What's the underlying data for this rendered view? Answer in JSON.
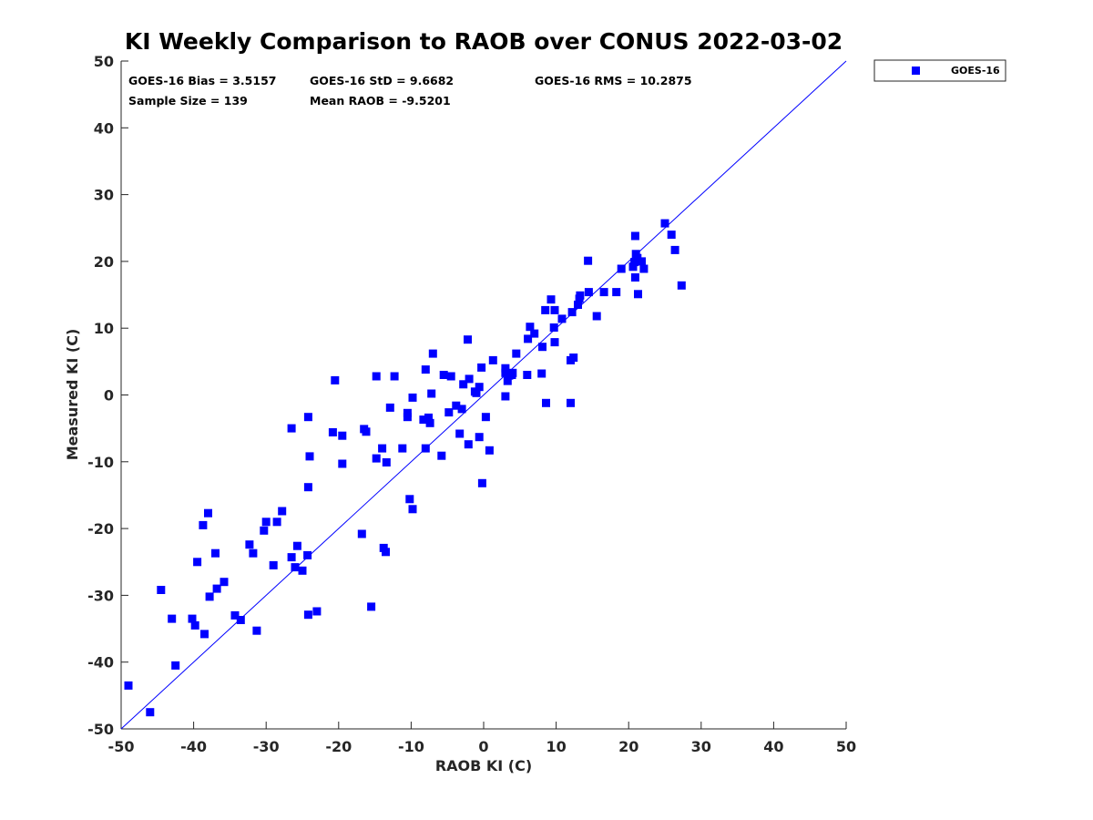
{
  "chart_data": {
    "type": "scatter",
    "title": "KI Weekly Comparison to RAOB over CONUS 2022-03-02",
    "xlabel": "RAOB KI (C)",
    "ylabel": "Measured KI (C)",
    "xlim": [
      -50,
      50
    ],
    "ylim": [
      -50,
      50
    ],
    "xticks": [
      "-50",
      "-40",
      "-30",
      "-20",
      "-10",
      "0",
      "10",
      "20",
      "30",
      "40",
      "50"
    ],
    "yticks": [
      "50",
      "40",
      "30",
      "20",
      "10",
      "0",
      "-10",
      "-20",
      "-30",
      "-40",
      "-50"
    ],
    "reference_line": {
      "from": [
        -50,
        -50
      ],
      "to": [
        50,
        50
      ],
      "color": "#0000ff"
    },
    "legend": {
      "position": "top-right-outside",
      "entries": [
        "GOES-16"
      ]
    },
    "stats": {
      "bias": "GOES-16 Bias = 3.5157",
      "std": "GOES-16 StD = 9.6682",
      "rms": "GOES-16 RMS = 10.2875",
      "sample_size": "Sample Size = 139",
      "mean_raob": "Mean RAOB = -9.5201"
    },
    "series": [
      {
        "name": "GOES-16",
        "color": "#0000ff",
        "marker": "square",
        "points": [
          [
            -49.0,
            -43.5
          ],
          [
            -46.0,
            -47.5
          ],
          [
            -44.5,
            -29.2
          ],
          [
            -43.0,
            -33.5
          ],
          [
            -42.5,
            -40.5
          ],
          [
            -40.2,
            -33.5
          ],
          [
            -39.8,
            -34.5
          ],
          [
            -39.5,
            -25.0
          ],
          [
            -38.7,
            -19.5
          ],
          [
            -38.5,
            -35.8
          ],
          [
            -38.0,
            -17.7
          ],
          [
            -37.8,
            -30.2
          ],
          [
            -37.0,
            -23.7
          ],
          [
            -36.8,
            -29.0
          ],
          [
            -35.8,
            -28.0
          ],
          [
            -34.3,
            -33.0
          ],
          [
            -33.5,
            -33.7
          ],
          [
            -32.3,
            -22.4
          ],
          [
            -31.8,
            -23.7
          ],
          [
            -31.3,
            -35.3
          ],
          [
            -30.3,
            -20.3
          ],
          [
            -30.0,
            -19.0
          ],
          [
            -29.0,
            -25.5
          ],
          [
            -28.5,
            -19.0
          ],
          [
            -27.8,
            -17.4
          ],
          [
            -26.5,
            -24.3
          ],
          [
            -26.5,
            -5.0
          ],
          [
            -26.0,
            -25.8
          ],
          [
            -25.7,
            -22.6
          ],
          [
            -25.0,
            -26.3
          ],
          [
            -24.3,
            -24.0
          ],
          [
            -24.2,
            -32.9
          ],
          [
            -24.2,
            -13.8
          ],
          [
            -24.0,
            -9.2
          ],
          [
            -24.2,
            -3.3
          ],
          [
            -23.0,
            -32.4
          ],
          [
            -20.8,
            -5.6
          ],
          [
            -20.5,
            2.2
          ],
          [
            -19.5,
            -6.1
          ],
          [
            -19.5,
            -10.3
          ],
          [
            -16.8,
            -20.8
          ],
          [
            -16.5,
            -5.1
          ],
          [
            -16.2,
            -5.5
          ],
          [
            -15.5,
            -31.7
          ],
          [
            -14.8,
            -9.5
          ],
          [
            -14.8,
            2.8
          ],
          [
            -14.0,
            -8.0
          ],
          [
            -13.8,
            -22.9
          ],
          [
            -13.5,
            -23.5
          ],
          [
            -13.4,
            -10.1
          ],
          [
            -12.9,
            -1.9
          ],
          [
            -12.3,
            2.8
          ],
          [
            -11.2,
            -8.0
          ],
          [
            -10.5,
            -3.3
          ],
          [
            -10.5,
            -2.7
          ],
          [
            -10.2,
            -15.6
          ],
          [
            -9.8,
            -17.1
          ],
          [
            -9.8,
            -0.4
          ],
          [
            -8.3,
            -3.7
          ],
          [
            -8.0,
            3.8
          ],
          [
            -8.0,
            -8.0
          ],
          [
            -7.6,
            -3.4
          ],
          [
            -7.4,
            -4.2
          ],
          [
            -7.2,
            0.2
          ],
          [
            -7.0,
            6.2
          ],
          [
            -5.8,
            -9.1
          ],
          [
            -5.5,
            3.0
          ],
          [
            -4.8,
            -2.6
          ],
          [
            -4.5,
            2.8
          ],
          [
            -3.8,
            -1.6
          ],
          [
            -3.3,
            -5.8
          ],
          [
            -3.0,
            -2.1
          ],
          [
            -2.8,
            1.6
          ],
          [
            -2.2,
            8.3
          ],
          [
            -2.1,
            -7.4
          ],
          [
            -2.0,
            2.4
          ],
          [
            -1.2,
            0.5
          ],
          [
            -1.0,
            0.3
          ],
          [
            -0.6,
            1.2
          ],
          [
            -0.6,
            -6.3
          ],
          [
            -0.3,
            4.1
          ],
          [
            -0.2,
            -13.2
          ],
          [
            0.3,
            -3.3
          ],
          [
            0.8,
            -8.3
          ],
          [
            1.3,
            5.2
          ],
          [
            3.0,
            -0.2
          ],
          [
            3.0,
            3.3
          ],
          [
            3.0,
            4.0
          ],
          [
            3.3,
            2.1
          ],
          [
            3.5,
            2.9
          ],
          [
            3.9,
            3.0
          ],
          [
            4.0,
            3.3
          ],
          [
            4.5,
            6.2
          ],
          [
            6.0,
            3.0
          ],
          [
            6.1,
            8.4
          ],
          [
            6.4,
            10.2
          ],
          [
            7.0,
            9.2
          ],
          [
            8.0,
            3.2
          ],
          [
            8.1,
            7.2
          ],
          [
            8.5,
            12.7
          ],
          [
            8.6,
            -1.2
          ],
          [
            9.3,
            14.3
          ],
          [
            9.7,
            10.1
          ],
          [
            9.8,
            7.9
          ],
          [
            9.8,
            12.7
          ],
          [
            10.8,
            11.4
          ],
          [
            12.0,
            -1.2
          ],
          [
            12.0,
            5.2
          ],
          [
            12.2,
            12.4
          ],
          [
            12.4,
            5.6
          ],
          [
            13.0,
            13.5
          ],
          [
            13.2,
            14.4
          ],
          [
            13.3,
            14.9
          ],
          [
            14.4,
            20.1
          ],
          [
            14.5,
            15.4
          ],
          [
            15.6,
            11.8
          ],
          [
            16.6,
            15.4
          ],
          [
            18.3,
            15.4
          ],
          [
            19.0,
            18.9
          ],
          [
            20.6,
            19.2
          ],
          [
            20.8,
            19.9
          ],
          [
            20.9,
            23.8
          ],
          [
            20.9,
            17.6
          ],
          [
            21.0,
            21.1
          ],
          [
            21.2,
            20.5
          ],
          [
            21.3,
            15.1
          ],
          [
            21.8,
            20.0
          ],
          [
            22.1,
            18.9
          ],
          [
            25.0,
            25.7
          ],
          [
            25.9,
            24.0
          ],
          [
            26.4,
            21.7
          ],
          [
            27.3,
            16.4
          ]
        ]
      }
    ]
  }
}
